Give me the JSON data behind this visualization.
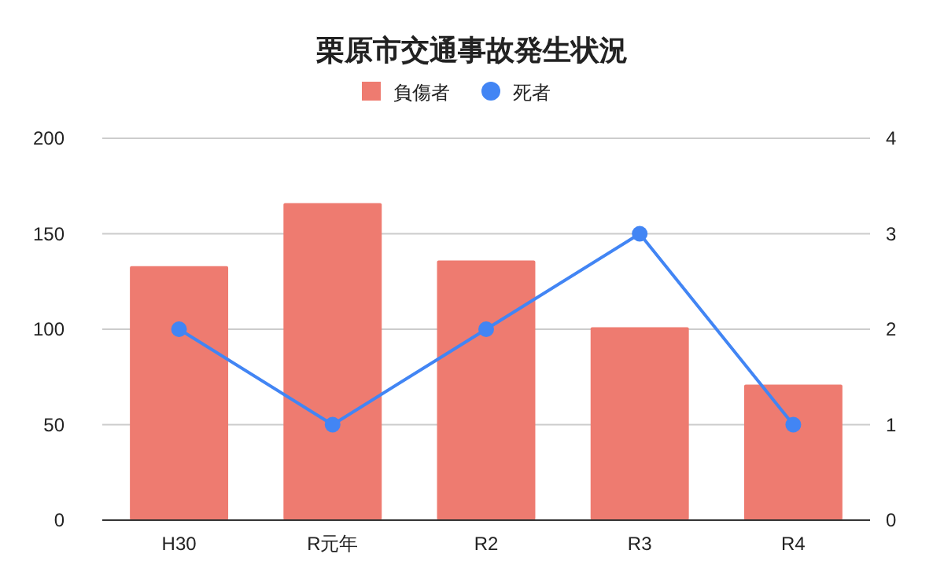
{
  "chart_data": {
    "type": "bar",
    "title": "栗原市交通事故発生状況",
    "categories": [
      "H30",
      "R元年",
      "R2",
      "R3",
      "R4"
    ],
    "series": [
      {
        "name": "負傷者",
        "color": "#ee7b70",
        "values": [
          133,
          166,
          136,
          101,
          71
        ]
      },
      {
        "name": "死者",
        "type": "line",
        "axis": "y2",
        "color": "#4285f4",
        "values": [
          2,
          1,
          2,
          3,
          1
        ],
        "marker": "circle"
      }
    ],
    "ylim": [
      0,
      200
    ],
    "yticks": [
      0,
      50,
      100,
      150,
      200
    ],
    "y2lim": [
      0,
      4
    ],
    "y2ticks": [
      0,
      1,
      2,
      3,
      4
    ],
    "grid": "y",
    "legend": "top"
  }
}
